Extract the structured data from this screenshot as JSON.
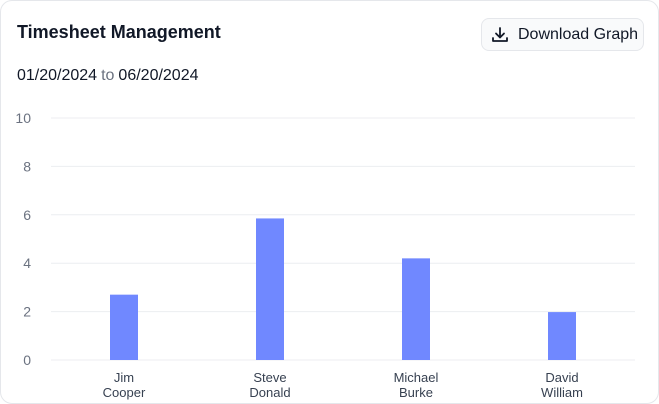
{
  "header": {
    "title": "Timesheet Management",
    "download_label": "Download Graph",
    "download_icon": "download-icon"
  },
  "date_range": {
    "start": "01/20/2024",
    "separator": "to",
    "end": "06/20/2024"
  },
  "chart_data": {
    "type": "bar",
    "categories": [
      [
        "Jim",
        "Cooper"
      ],
      [
        "Steve",
        "Donald"
      ],
      [
        "Michael",
        "Burke"
      ],
      [
        "David",
        "William"
      ]
    ],
    "values": [
      2.7,
      5.85,
      4.2,
      1.98
    ],
    "ylim": [
      0,
      10
    ],
    "yticks": [
      0,
      2,
      4,
      6,
      8,
      10
    ],
    "grid": true,
    "bar_color": "#7088ff",
    "title": "",
    "xlabel": "",
    "ylabel": ""
  }
}
